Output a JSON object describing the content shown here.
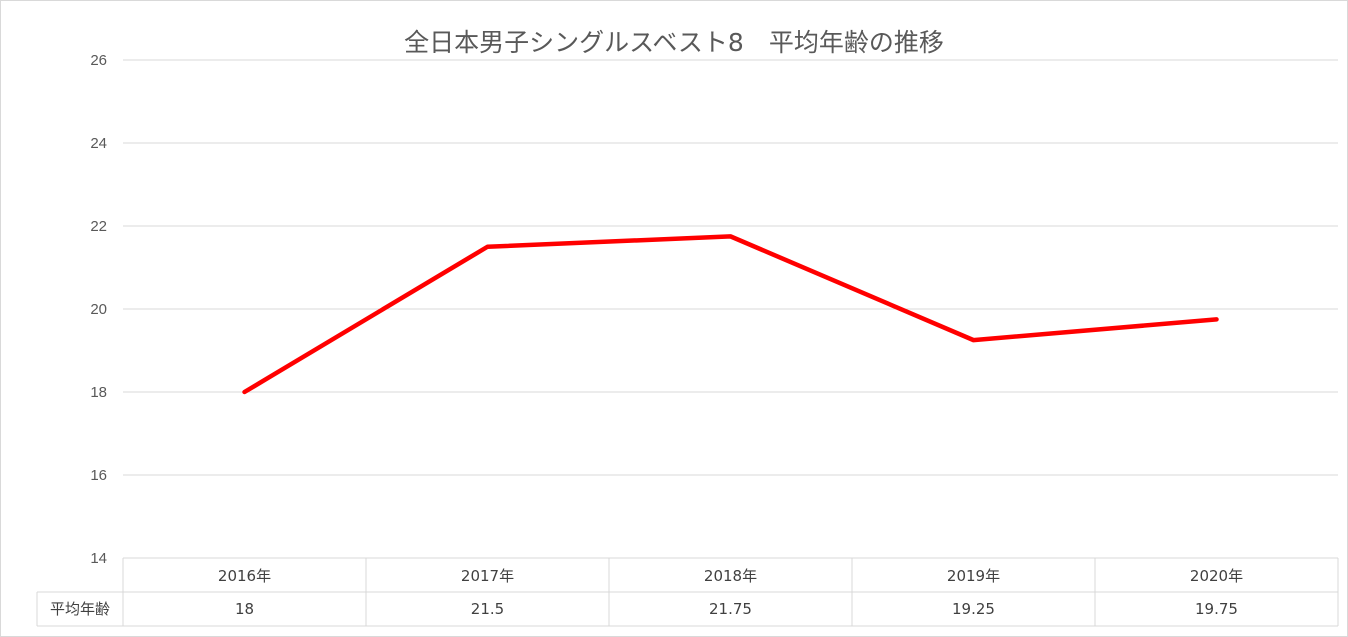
{
  "chart_data": {
    "type": "line",
    "title": "全日本男子シングルスベスト8　平均年齢の推移",
    "categories": [
      "2016年",
      "2017年",
      "2018年",
      "2019年",
      "2020年"
    ],
    "series": [
      {
        "name": "平均年齢",
        "values": [
          18,
          21.5,
          21.75,
          19.25,
          19.75
        ],
        "color": "#ff0000"
      }
    ],
    "value_labels": [
      "18",
      "21.5",
      "21.75",
      "19.25",
      "19.75"
    ],
    "ylim": [
      14,
      26
    ],
    "yticks": [
      "14",
      "16",
      "18",
      "20",
      "22",
      "24",
      "26"
    ],
    "grid": true,
    "legend": "data-table-bottom"
  }
}
